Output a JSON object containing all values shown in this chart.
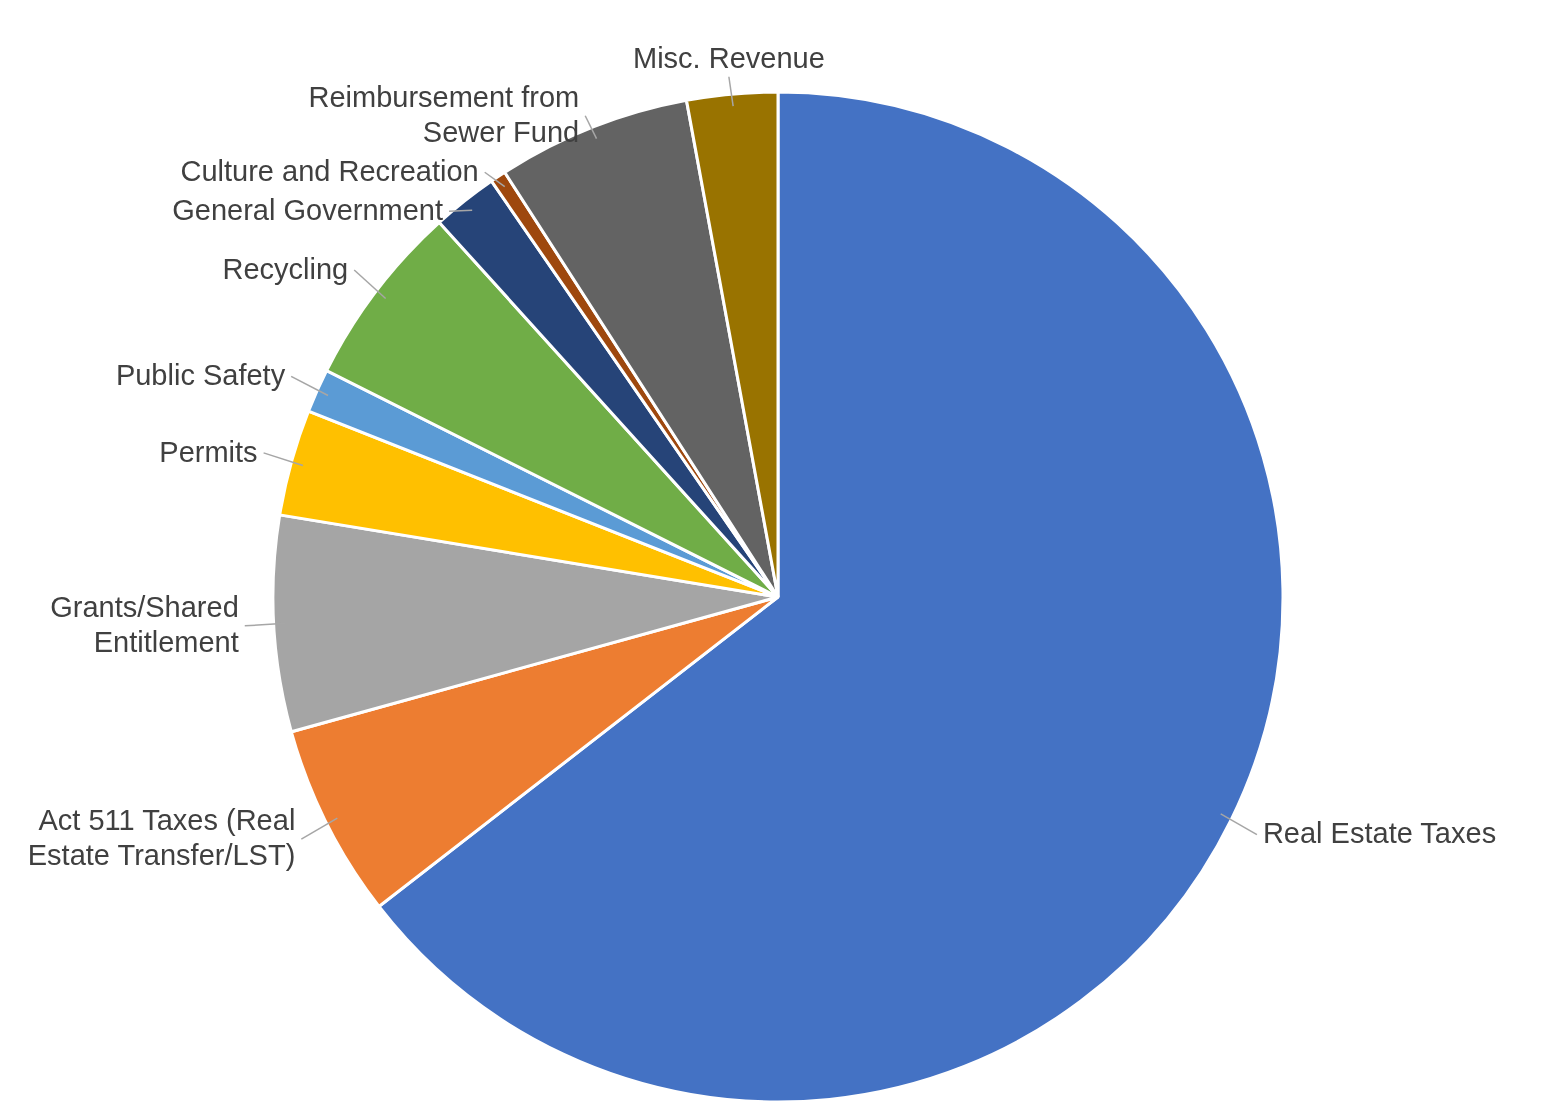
{
  "chart_data": {
    "type": "pie",
    "categories": [
      "Real Estate Taxes",
      "Act 511 Taxes (Real Estate Transfer/LST)",
      "Grants/Shared Entitlement",
      "Permits",
      "Public Safety",
      "Recycling",
      "General Government",
      "Culture and Recreation",
      "Reimbursement from Sewer Fund",
      "Misc. Revenue"
    ],
    "values": [
      64.5,
      6.2,
      6.9,
      3.4,
      1.4,
      5.9,
      2.1,
      0.5,
      6.2,
      2.9
    ],
    "colors": [
      "#4472c4",
      "#ed7d31",
      "#a5a5a5",
      "#ffc000",
      "#5b9bd5",
      "#70ad47",
      "#264478",
      "#9e480e",
      "#636363",
      "#997300"
    ],
    "legend": false
  }
}
